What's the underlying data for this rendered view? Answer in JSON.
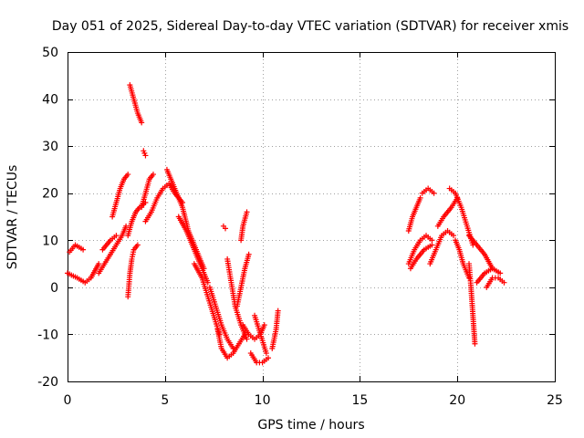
{
  "chart_data": {
    "type": "scatter",
    "title": "Day 051 of 2025, Sidereal Day-to-day VTEC variation (SDTVAR) for receiver xmis",
    "xlabel": "GPS time / hours",
    "ylabel": "SDTVAR / TECUs",
    "xlim": [
      0,
      25
    ],
    "ylim": [
      -20,
      50
    ],
    "xticks": [
      "0",
      "5",
      "10",
      "15",
      "20",
      "25"
    ],
    "yticks": [
      "-20",
      "-10",
      "0",
      "10",
      "20",
      "30",
      "40",
      "50"
    ],
    "grid": true,
    "marker": "+",
    "marker_color": "#ff0000",
    "series": [
      {
        "name": "SDTVAR",
        "arcs": [
          {
            "x": [
              0.0,
              0.5,
              0.9,
              1.2,
              1.6
            ],
            "y": [
              3,
              2,
              1,
              2,
              5
            ]
          },
          {
            "x": [
              0.1,
              0.4,
              0.8
            ],
            "y": [
              7.5,
              9,
              8
            ]
          },
          {
            "x": [
              1.6,
              1.9,
              2.2,
              2.5,
              2.8,
              3.0
            ],
            "y": [
              3,
              5,
              7,
              9,
              11,
              13
            ]
          },
          {
            "x": [
              1.8,
              2.2,
              2.5
            ],
            "y": [
              8,
              10,
              11
            ]
          },
          {
            "x": [
              2.3,
              2.5,
              2.7,
              2.9,
              3.1
            ],
            "y": [
              15,
              18,
              21,
              23,
              24
            ]
          },
          {
            "x": [
              3.2,
              3.4,
              3.6,
              3.8
            ],
            "y": [
              43,
              40,
              37,
              35
            ]
          },
          {
            "x": [
              3.1,
              3.2,
              3.3,
              3.4,
              3.6
            ],
            "y": [
              -2,
              3,
              6,
              8,
              9
            ]
          },
          {
            "x": [
              3.1,
              3.3,
              3.5,
              3.7,
              4.0
            ],
            "y": [
              11,
              14,
              16,
              17,
              18
            ]
          },
          {
            "x": [
              3.8,
              4.0,
              4.2,
              4.4
            ],
            "y": [
              17,
              20,
              23,
              24
            ]
          },
          {
            "x": [
              3.9,
              4.0
            ],
            "y": [
              29,
              28
            ]
          },
          {
            "x": [
              4.0,
              4.3,
              4.6,
              4.9,
              5.2,
              5.5,
              5.9
            ],
            "y": [
              14,
              16,
              19,
              21,
              22,
              20,
              18
            ]
          },
          {
            "x": [
              5.1,
              5.5,
              5.9,
              6.2,
              6.6,
              7.0
            ],
            "y": [
              25,
              21,
              17,
              12,
              8,
              4
            ]
          },
          {
            "x": [
              5.7,
              6.1,
              6.5,
              6.9,
              7.2
            ],
            "y": [
              15,
              12,
              8,
              4,
              1
            ]
          },
          {
            "x": [
              6.5,
              6.9,
              7.2,
              7.5,
              7.8
            ],
            "y": [
              5,
              2,
              -2,
              -6,
              -10
            ]
          },
          {
            "x": [
              7.3,
              7.6,
              7.9,
              8.2,
              8.5
            ],
            "y": [
              0,
              -4,
              -8,
              -11,
              -13
            ]
          },
          {
            "x": [
              7.7,
              7.9,
              8.2,
              8.5,
              8.8,
              9.1
            ],
            "y": [
              -9,
              -13,
              -15,
              -14,
              -12,
              -10
            ]
          },
          {
            "x": [
              8.0,
              8.1
            ],
            "y": [
              13,
              12.5
            ]
          },
          {
            "x": [
              8.2,
              8.4,
              8.6,
              8.9,
              9.2
            ],
            "y": [
              6,
              1,
              -4,
              -8,
              -11
            ]
          },
          {
            "x": [
              8.7,
              8.9,
              9.1,
              9.3
            ],
            "y": [
              -4,
              0,
              4,
              7
            ]
          },
          {
            "x": [
              8.9,
              9.0,
              9.2
            ],
            "y": [
              10,
              13,
              16
            ]
          },
          {
            "x": [
              9.0,
              9.3,
              9.6,
              9.9,
              10.1
            ],
            "y": [
              -8,
              -10,
              -11,
              -10,
              -8
            ]
          },
          {
            "x": [
              9.4,
              9.7,
              10.0,
              10.3
            ],
            "y": [
              -14,
              -16,
              -16,
              -15
            ]
          },
          {
            "x": [
              9.6,
              9.9,
              10.2
            ],
            "y": [
              -6,
              -10,
              -14
            ]
          },
          {
            "x": [
              10.5,
              10.7,
              10.8
            ],
            "y": [
              -13,
              -9,
              -5
            ]
          },
          {
            "x": [
              17.5,
              17.8,
              18.1,
              18.4,
              18.7
            ],
            "y": [
              5,
              8,
              10,
              11,
              10
            ]
          },
          {
            "x": [
              17.5,
              17.7,
              17.9,
              18.1
            ],
            "y": [
              12,
              15,
              17,
              19
            ]
          },
          {
            "x": [
              17.6,
              17.9,
              18.3,
              18.7
            ],
            "y": [
              4,
              6,
              8,
              9
            ]
          },
          {
            "x": [
              18.2,
              18.5,
              18.8
            ],
            "y": [
              20,
              21,
              20
            ]
          },
          {
            "x": [
              18.6,
              18.9,
              19.2,
              19.5,
              19.8
            ],
            "y": [
              5,
              8,
              11,
              12,
              11
            ]
          },
          {
            "x": [
              19.0,
              19.3,
              19.7,
              20.0
            ],
            "y": [
              13,
              15,
              17,
              19
            ]
          },
          {
            "x": [
              19.6,
              19.9,
              20.2,
              20.5,
              20.8
            ],
            "y": [
              21,
              20,
              17,
              13,
              9
            ]
          },
          {
            "x": [
              19.9,
              20.1,
              20.3,
              20.6
            ],
            "y": [
              10,
              8,
              5,
              2
            ]
          },
          {
            "x": [
              20.6,
              20.7,
              20.8,
              20.9
            ],
            "y": [
              5,
              0,
              -6,
              -12
            ]
          },
          {
            "x": [
              20.6,
              21.0,
              21.4,
              21.8
            ],
            "y": [
              11,
              9,
              7,
              4
            ]
          },
          {
            "x": [
              21.0,
              21.4,
              21.8,
              22.2
            ],
            "y": [
              1,
              3,
              4,
              3
            ]
          },
          {
            "x": [
              21.5,
              21.8,
              22.1,
              22.4
            ],
            "y": [
              0,
              2,
              2,
              1
            ]
          }
        ]
      }
    ]
  }
}
